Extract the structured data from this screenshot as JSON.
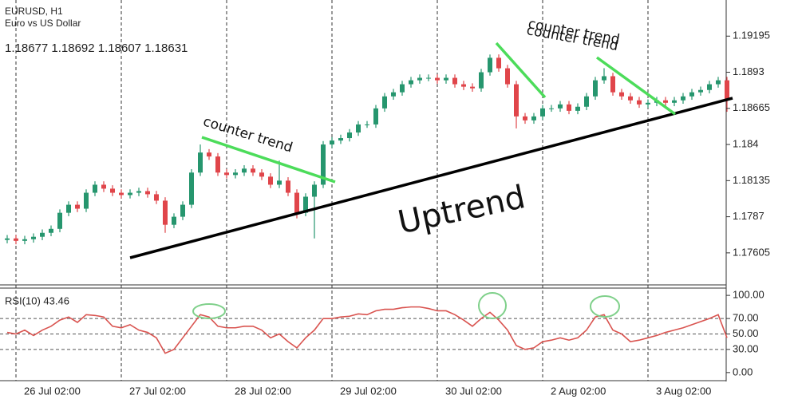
{
  "chart_data": [
    {
      "type": "candlestick",
      "title": "EURUSD, H1",
      "subtitle": "Euro vs US Dollar",
      "quote": "1.18677 1.18692 1.18607 1.18631",
      "categories": [
        null,
        null,
        "26 Jul 02:00",
        null,
        null,
        null,
        null,
        null,
        null,
        null,
        null,
        null,
        null,
        null,
        "27 Jul 02:00",
        null,
        null,
        null,
        null,
        null,
        null,
        null,
        null,
        null,
        null,
        null,
        "28 Jul 02:00",
        null,
        null,
        null,
        null,
        null,
        null,
        null,
        null,
        null,
        null,
        null,
        "29 Jul 02:00",
        null,
        null,
        null,
        null,
        null,
        null,
        null,
        null,
        null,
        null,
        null,
        "30 Jul 02:00",
        null,
        null,
        null,
        null,
        null,
        null,
        null,
        null,
        null,
        null,
        null,
        "2 Aug 02:00",
        null,
        null,
        null,
        null,
        null,
        null,
        null,
        null,
        null,
        null,
        null,
        "3 Aug 02:00",
        null,
        null,
        null,
        null,
        null,
        null,
        null,
        null
      ],
      "open": [
        1.177,
        1.17711,
        1.17693,
        1.17705,
        1.17723,
        1.17752,
        1.17781,
        1.17899,
        1.17958,
        1.17929,
        1.18046,
        1.18105,
        1.18076,
        1.18046,
        1.18029,
        1.18046,
        1.18058,
        1.18035,
        1.17988,
        1.17811,
        1.1787,
        1.17958,
        1.18194,
        1.18341,
        1.18312,
        1.18194,
        1.18176,
        1.18194,
        1.18223,
        1.18194,
        1.18164,
        1.18105,
        1.18135,
        1.18046,
        1.17899,
        1.18017,
        1.18105,
        1.184,
        1.18429,
        1.18447,
        1.18488,
        1.18547,
        1.18547,
        1.18665,
        1.18753,
        1.18783,
        1.18842,
        1.18871,
        1.18889,
        1.18889,
        1.18871,
        1.18889,
        1.18842,
        1.18824,
        1.18812,
        1.1893,
        1.19036,
        1.18959,
        1.18842,
        1.18606,
        1.18577,
        1.18606,
        1.18665,
        1.18665,
        1.18694,
        1.18647,
        1.18677,
        1.18753,
        1.18871,
        1.18901,
        1.18783,
        1.18753,
        1.18724,
        1.18694,
        1.18706,
        1.18724,
        1.18706,
        1.18724,
        1.18753,
        1.18783,
        1.188,
        1.18842,
        1.18871
      ],
      "high": [
        1.17736,
        1.17736,
        1.1773,
        1.17748,
        1.17777,
        1.17806,
        1.17924,
        1.17983,
        1.17983,
        1.18071,
        1.1813,
        1.1813,
        1.18101,
        1.18071,
        1.18071,
        1.18083,
        1.18083,
        1.1806,
        1.18013,
        1.17895,
        1.17983,
        1.18219,
        1.184,
        1.18366,
        1.18337,
        1.18219,
        1.18219,
        1.18248,
        1.18248,
        1.18219,
        1.18189,
        1.18282,
        1.1816,
        1.18071,
        1.18042,
        1.1813,
        1.18425,
        1.18454,
        1.18472,
        1.18513,
        1.18572,
        1.18572,
        1.1869,
        1.18778,
        1.18808,
        1.18867,
        1.18896,
        1.18914,
        1.18914,
        1.18914,
        1.18914,
        1.18914,
        1.18867,
        1.18849,
        1.18955,
        1.1906,
        1.19061,
        1.18984,
        1.18867,
        1.18631,
        1.18631,
        1.1869,
        1.1869,
        1.18719,
        1.18719,
        1.18702,
        1.18778,
        1.18896,
        1.1896,
        1.18926,
        1.18808,
        1.18778,
        1.18749,
        1.18731,
        1.18749,
        1.18749,
        1.18749,
        1.18778,
        1.18808,
        1.18825,
        1.18867,
        1.18896,
        1.18896
      ],
      "low": [
        1.17675,
        1.17668,
        1.17668,
        1.1768,
        1.17698,
        1.17727,
        1.17756,
        1.17874,
        1.17904,
        1.17904,
        1.18021,
        1.18051,
        1.18021,
        1.18004,
        1.18004,
        1.18021,
        1.1801,
        1.17963,
        1.17752,
        1.17786,
        1.17845,
        1.17933,
        1.18169,
        1.18287,
        1.18169,
        1.18151,
        1.18151,
        1.18169,
        1.18169,
        1.18139,
        1.1808,
        1.1808,
        1.18021,
        1.17858,
        1.17874,
        1.17711,
        1.1808,
        1.18375,
        1.18404,
        1.18422,
        1.18463,
        1.18522,
        1.18522,
        1.1864,
        1.18728,
        1.18758,
        1.18817,
        1.18846,
        1.18864,
        1.18846,
        1.18846,
        1.18817,
        1.18799,
        1.18787,
        1.18787,
        1.18905,
        1.18934,
        1.18817,
        1.18518,
        1.18552,
        1.18552,
        1.18581,
        1.1864,
        1.1864,
        1.18622,
        1.18622,
        1.18652,
        1.18728,
        1.18846,
        1.18758,
        1.18728,
        1.18699,
        1.18669,
        1.18669,
        1.18681,
        1.18681,
        1.18681,
        1.18699,
        1.18728,
        1.18758,
        1.18775,
        1.18817,
        1.1864
      ],
      "close": [
        1.17711,
        1.17693,
        1.17705,
        1.17723,
        1.17752,
        1.17781,
        1.17899,
        1.17958,
        1.17929,
        1.18046,
        1.18105,
        1.18076,
        1.18046,
        1.18029,
        1.18046,
        1.18058,
        1.18035,
        1.17988,
        1.17811,
        1.1787,
        1.17958,
        1.18194,
        1.18341,
        1.18312,
        1.18194,
        1.18176,
        1.18194,
        1.18223,
        1.18194,
        1.18164,
        1.18105,
        1.18135,
        1.18046,
        1.17899,
        1.18017,
        1.18105,
        1.184,
        1.18429,
        1.18447,
        1.18488,
        1.18547,
        1.18547,
        1.18665,
        1.18753,
        1.18783,
        1.18842,
        1.18871,
        1.18889,
        1.18889,
        1.18871,
        1.18889,
        1.18842,
        1.18824,
        1.18812,
        1.1893,
        1.19036,
        1.18959,
        1.18842,
        1.18606,
        1.18577,
        1.18606,
        1.18665,
        1.18665,
        1.18694,
        1.18647,
        1.18677,
        1.18753,
        1.18871,
        1.18901,
        1.18783,
        1.18753,
        1.18724,
        1.18694,
        1.18706,
        1.18724,
        1.18706,
        1.18724,
        1.18753,
        1.18783,
        1.188,
        1.18842,
        1.18871,
        1.18724
      ],
      "up_color": "#26966e",
      "down_color": "#e0454a",
      "ylim": [
        1.1737,
        1.1946
      ],
      "yticks": [
        1.19195,
        1.1893,
        1.18665,
        1.184,
        1.18135,
        1.1787,
        1.17605
      ],
      "annotations": [
        "counter trend",
        "counter trend",
        "Uptrend",
        "counter trend"
      ]
    },
    {
      "type": "line",
      "title": "RSI(10) 43.46",
      "color": "#d9534f",
      "values": [
        52,
        50,
        55,
        48,
        55,
        60,
        68,
        72,
        65,
        75,
        74,
        72,
        60,
        58,
        62,
        55,
        52,
        45,
        25,
        30,
        45,
        60,
        75,
        72,
        60,
        58,
        58,
        60,
        60,
        55,
        45,
        50,
        40,
        32,
        45,
        55,
        70,
        70,
        72,
        73,
        76,
        75,
        80,
        82,
        82,
        84,
        85,
        85,
        83,
        80,
        80,
        75,
        68,
        60,
        70,
        78,
        68,
        55,
        35,
        30,
        32,
        40,
        42,
        45,
        42,
        45,
        55,
        72,
        75,
        55,
        50,
        40,
        42,
        45,
        48,
        52,
        55,
        58,
        62,
        66,
        70,
        75,
        45
      ],
      "ylim": [
        -10.5,
        108.4
      ],
      "yticks": [
        {
          "value": 100,
          "label": "100.00"
        },
        {
          "value": 70,
          "label": "70.00"
        },
        {
          "value": 50,
          "label": "50.00"
        },
        {
          "value": 30,
          "label": "30.00"
        },
        {
          "value": 0,
          "label": "0.00"
        }
      ],
      "grid_values": [
        70,
        50,
        30
      ]
    }
  ]
}
